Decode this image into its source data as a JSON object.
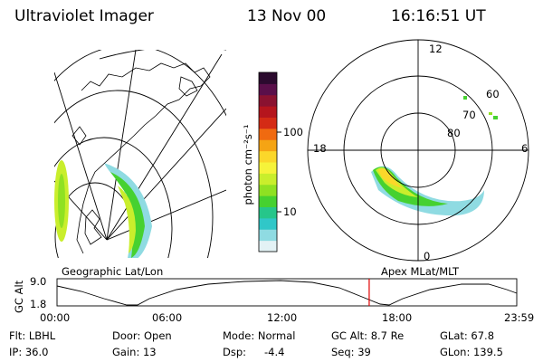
{
  "header": {
    "instrument": "Ultraviolet Imager",
    "date": "13 Nov 00",
    "time": "16:16:51 UT"
  },
  "colorbar": {
    "unit_label": "photon cm⁻²s⁻¹",
    "ticks": [
      "100",
      "10"
    ],
    "colors": [
      "#2b0a2e",
      "#5a0f4a",
      "#8a1230",
      "#b5151d",
      "#d42b15",
      "#f06a10",
      "#f5a414",
      "#fbd72a",
      "#f6f33a",
      "#c9ee2c",
      "#8fe122",
      "#46d130",
      "#26c68a",
      "#30c7c8",
      "#8fdbe2",
      "#e3f2f5"
    ]
  },
  "left_map": {
    "label": "Geographic Lat/Lon"
  },
  "right_map": {
    "label": "Apex MLat/MLT",
    "mlt_labels": {
      "top": "12",
      "left": "18",
      "right": "6",
      "bottom": "0"
    },
    "lat_labels": [
      "60",
      "70",
      "80"
    ]
  },
  "timeline": {
    "ylabel": "GC Alt",
    "yticks": [
      "9.0",
      "1.8"
    ],
    "xticks": [
      "00:00",
      "06:00",
      "12:00",
      "18:00",
      "23:59"
    ],
    "marker_fraction": 0.679,
    "marker_color": "#e00000"
  },
  "status": {
    "filter": "Flt: LBHL",
    "ip": "IP: 36.0",
    "door": "Door: Open",
    "gain": "Gain: 13",
    "mode": "Mode: Normal",
    "dsp_label": "Dsp:",
    "dsp_value": "-4.4",
    "gc_alt": "GC Alt: 8.7 Re",
    "seq": "Seq: 39",
    "glat": "GLat:  67.8",
    "glon": "GLon: 139.5"
  }
}
